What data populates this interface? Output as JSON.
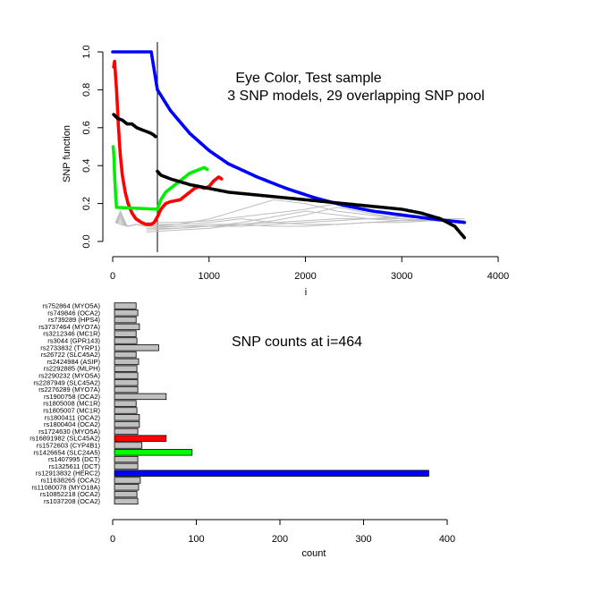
{
  "chart_data": [
    {
      "type": "scatter",
      "title": "Eye Color, Test sample",
      "subtitle": "3 SNP models, 29 overlapping SNP pool",
      "xlabel": "i",
      "ylabel": "SNP function",
      "xlim": [
        0,
        4000
      ],
      "ylim": [
        0,
        1
      ],
      "xticks": [
        "0",
        "1000",
        "2000",
        "3000",
        "4000"
      ],
      "yticks": [
        "0.0",
        "0.2",
        "0.4",
        "0.6",
        "0.8",
        "1.0"
      ],
      "vline_x": 464,
      "series": [
        {
          "color": "#0000ff",
          "points": [
            [
              0,
              1.0
            ],
            [
              200,
              1.0
            ],
            [
              400,
              1.0
            ],
            [
              464,
              0.8
            ],
            [
              600,
              0.69
            ],
            [
              800,
              0.57
            ],
            [
              1000,
              0.48
            ],
            [
              1200,
              0.41
            ],
            [
              1500,
              0.34
            ],
            [
              1800,
              0.28
            ],
            [
              2100,
              0.23
            ],
            [
              2400,
              0.19
            ],
            [
              2700,
              0.16
            ],
            [
              3000,
              0.14
            ],
            [
              3300,
              0.12
            ],
            [
              3650,
              0.1
            ]
          ]
        },
        {
          "color": "#ff0000",
          "points": [
            [
              10,
              0.92
            ],
            [
              20,
              0.95
            ],
            [
              40,
              0.8
            ],
            [
              60,
              0.6
            ],
            [
              80,
              0.45
            ],
            [
              100,
              0.35
            ],
            [
              130,
              0.26
            ],
            [
              160,
              0.2
            ],
            [
              200,
              0.15
            ],
            [
              240,
              0.12
            ],
            [
              300,
              0.1
            ],
            [
              350,
              0.09
            ],
            [
              400,
              0.09
            ],
            [
              430,
              0.1
            ],
            [
              464,
              0.13
            ],
            [
              500,
              0.17
            ],
            [
              550,
              0.2
            ],
            [
              600,
              0.21
            ],
            [
              700,
              0.22
            ],
            [
              750,
              0.24
            ],
            [
              800,
              0.26
            ],
            [
              850,
              0.28
            ],
            [
              900,
              0.29
            ],
            [
              950,
              0.28
            ],
            [
              1000,
              0.29
            ],
            [
              1050,
              0.32
            ],
            [
              1100,
              0.34
            ],
            [
              1130,
              0.33
            ]
          ]
        },
        {
          "color": "#00ee00",
          "points": [
            [
              5,
              0.5
            ],
            [
              15,
              0.43
            ],
            [
              20,
              0.35
            ],
            [
              30,
              0.25
            ],
            [
              40,
              0.18
            ],
            [
              464,
              0.17
            ],
            [
              500,
              0.22
            ],
            [
              550,
              0.26
            ],
            [
              600,
              0.28
            ],
            [
              650,
              0.3
            ],
            [
              700,
              0.32
            ],
            [
              750,
              0.34
            ],
            [
              800,
              0.36
            ],
            [
              850,
              0.37
            ],
            [
              900,
              0.38
            ],
            [
              950,
              0.39
            ],
            [
              980,
              0.38
            ]
          ]
        },
        {
          "color": "#000000",
          "points": [
            [
              10,
              0.67
            ],
            [
              50,
              0.65
            ],
            [
              100,
              0.64
            ],
            [
              150,
              0.62
            ],
            [
              200,
              0.62
            ],
            [
              250,
              0.6
            ],
            [
              300,
              0.59
            ],
            [
              350,
              0.58
            ],
            [
              400,
              0.57
            ],
            [
              430,
              0.56
            ],
            [
              450,
              0.55
            ],
            [
              464,
              0.37
            ],
            [
              500,
              0.35
            ],
            [
              600,
              0.33
            ],
            [
              800,
              0.3
            ],
            [
              1000,
              0.28
            ],
            [
              1200,
              0.26
            ],
            [
              1400,
              0.25
            ],
            [
              1600,
              0.24
            ],
            [
              1800,
              0.23
            ],
            [
              2000,
              0.22
            ],
            [
              2200,
              0.21
            ],
            [
              2400,
              0.2
            ],
            [
              2600,
              0.19
            ],
            [
              2800,
              0.18
            ],
            [
              3000,
              0.17
            ],
            [
              3200,
              0.15
            ],
            [
              3400,
              0.12
            ],
            [
              3550,
              0.08
            ],
            [
              3650,
              0.02
            ]
          ]
        }
      ]
    },
    {
      "type": "bar",
      "orientation": "horizontal",
      "title": "SNP counts at i=464",
      "xlabel": "count",
      "xlim": [
        0,
        400
      ],
      "xticks": [
        "0",
        "100",
        "200",
        "300",
        "400"
      ],
      "categories": [
        "rs752864 (MYO5A)",
        "rs749846 (OCA2)",
        "rs739289 (HPS4)",
        "rs3737464 (MYO7A)",
        "rs3212346 (MC1R)",
        "rs3044 (GPR143)",
        "rs2733832 (TYRP1)",
        "rs26722 (SLC45A2)",
        "rs2424984 (ASIP)",
        "rs2292885 (MLPH)",
        "rs2290232 (MYO5A)",
        "rs2287949 (SLC45A2)",
        "rs2276289 (MYO7A)",
        "rs1900758 (OCA2)",
        "rs1805008 (MC1R)",
        "rs1805007 (MC1R)",
        "rs1800411 (OCA2)",
        "rs1800404 (OCA2)",
        "rs1724630 (MYO5A)",
        "rs16891982 (SLC45A2)",
        "rs1572603 (CYP4B1)",
        "rs1426654 (SLC24A5)",
        "rs1407995 (DCT)",
        "rs1325611 (DCT)",
        "rs12913832 (HERC2)",
        "rs11638265 (OCA2)",
        "rs11080078 (MYO18A)",
        "rs10852218 (OCA2)",
        "rs1037208 (OCA2)"
      ],
      "values": [
        28,
        30,
        28,
        32,
        28,
        29,
        55,
        28,
        31,
        29,
        30,
        30,
        30,
        64,
        28,
        29,
        32,
        32,
        30,
        64,
        35,
        95,
        30,
        30,
        378,
        33,
        31,
        29,
        30
      ],
      "colors": {
        "default": "#c0c0c0",
        "rs16891982 (SLC45A2)": "#ff0000",
        "rs1426654 (SLC24A5)": "#00ff00",
        "rs12913832 (HERC2)": "#0000ff"
      }
    }
  ]
}
